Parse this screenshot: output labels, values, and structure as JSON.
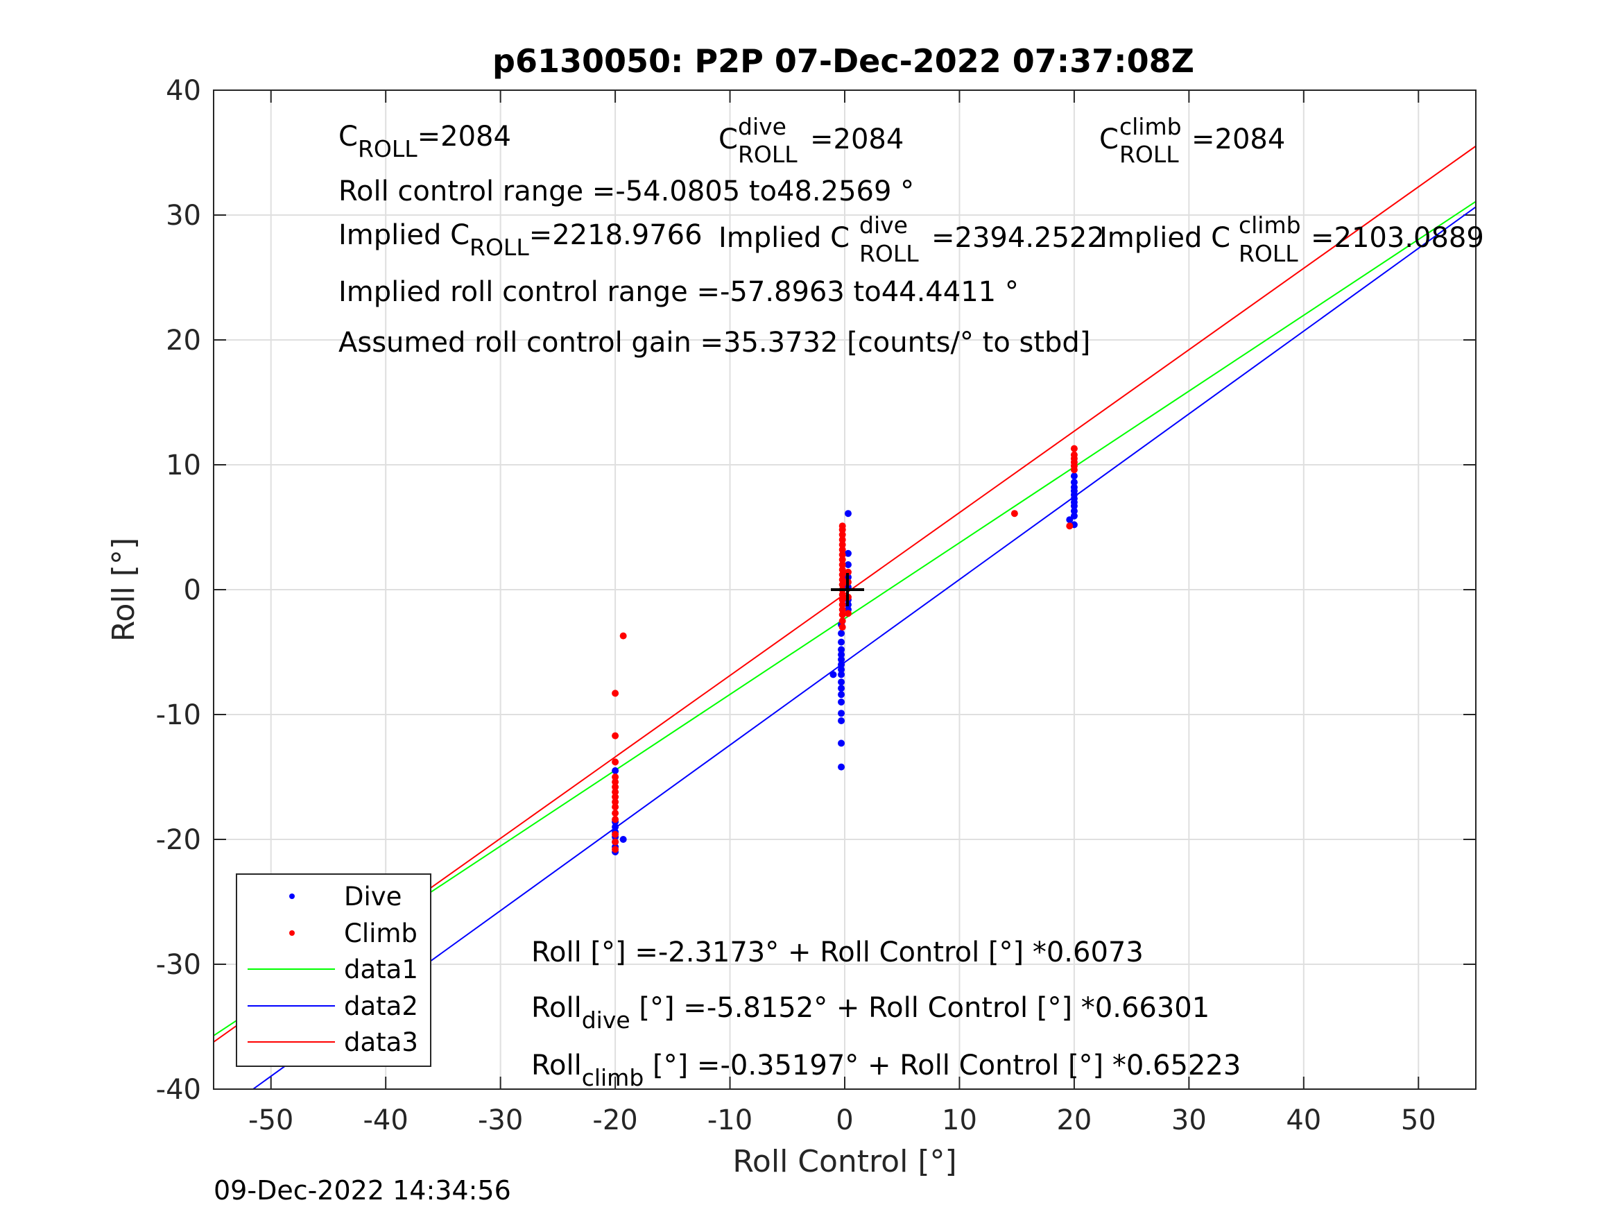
{
  "title": "p6130050: P2P 07-Dec-2022 07:37:08Z",
  "timestamp": "09-Dec-2022 14:34:56",
  "chart_data": {
    "type": "scatter",
    "xlabel": "Roll Control [°]",
    "ylabel": "Roll [°]",
    "xlim": [
      -55,
      55
    ],
    "ylim": [
      -40,
      40
    ],
    "xticks": [
      -50,
      -40,
      -30,
      -20,
      -10,
      0,
      10,
      20,
      30,
      40,
      50
    ],
    "yticks": [
      -40,
      -30,
      -20,
      -10,
      0,
      10,
      20,
      30,
      40
    ],
    "grid": true,
    "legend_position": "bottom-left",
    "annotations": {
      "c_roll": {
        "base": "C",
        "sub": "ROLL",
        "value": "=2084"
      },
      "c_roll_dive": {
        "base": "C",
        "sup": "dive",
        "sub": "ROLL",
        "value": "=2084"
      },
      "c_roll_climb": {
        "base": "C",
        "sup": "climb",
        "sub": "ROLL",
        "value": "=2084"
      },
      "range": "Roll control range =-54.0805 to48.2569 °",
      "implied_c": {
        "prefix": "Implied C",
        "sub": "ROLL",
        "value": "=2218.9766"
      },
      "implied_c_dive": {
        "prefix": "Implied C",
        "sup": "dive",
        "sub": "ROLL",
        "value": "=2394.2522"
      },
      "implied_c_climb": {
        "prefix": "Implied C",
        "sup": "climb",
        "sub": "ROLL",
        "value": "=2103.0889"
      },
      "implied_range": "Implied roll control range =-57.8963 to44.4411 °",
      "gain": "Assumed roll control gain =35.3732 [counts/° to stbd]",
      "eq_all": "Roll [°] =-2.3173° + Roll Control [°] *0.6073",
      "eq_dive": {
        "base": "Roll",
        "sub": "dive",
        "rest": " [°] =-5.8152° + Roll Control [°] *0.66301"
      },
      "eq_climb": {
        "base": "Roll",
        "sub": "climb",
        "rest": " [°] =-0.35197° + Roll Control [°] *0.65223"
      }
    },
    "series": [
      {
        "name": "Dive",
        "kind": "points",
        "color": "#0000ff",
        "points": [
          [
            -20,
            -21.0
          ],
          [
            -20,
            -20.6
          ],
          [
            -20,
            -20.2
          ],
          [
            -20,
            -19.8
          ],
          [
            -20,
            -19.4
          ],
          [
            -20,
            -19.0
          ],
          [
            -20,
            -18.6
          ],
          [
            -20,
            -14.5
          ],
          [
            -19.3,
            -20.0
          ],
          [
            -1.0,
            -6.8
          ],
          [
            -0.3,
            -14.2
          ],
          [
            -0.3,
            -12.3
          ],
          [
            -0.3,
            -10.5
          ],
          [
            -0.3,
            -9.9
          ],
          [
            -0.3,
            -9.0
          ],
          [
            -0.3,
            -8.4
          ],
          [
            -0.3,
            -7.9
          ],
          [
            -0.3,
            -7.4
          ],
          [
            -0.3,
            -6.8
          ],
          [
            -0.3,
            -6.4
          ],
          [
            -0.3,
            -6.0
          ],
          [
            -0.3,
            -5.6
          ],
          [
            -0.3,
            -5.2
          ],
          [
            -0.3,
            -4.8
          ],
          [
            -0.3,
            -4.2
          ],
          [
            -0.3,
            -3.5
          ],
          [
            -0.3,
            -2.8
          ],
          [
            0.3,
            -1.6
          ],
          [
            0.3,
            -0.8
          ],
          [
            0.3,
            0.2
          ],
          [
            0.3,
            1.0
          ],
          [
            0.3,
            2.0
          ],
          [
            0.3,
            2.9
          ],
          [
            0.3,
            6.1
          ],
          [
            0.3,
            -1.2
          ],
          [
            19.6,
            5.6
          ],
          [
            20,
            5.2
          ],
          [
            20,
            5.9
          ],
          [
            20,
            6.3
          ],
          [
            20,
            6.7
          ],
          [
            20,
            7.0
          ],
          [
            20,
            7.3
          ],
          [
            20,
            7.6
          ],
          [
            20,
            7.9
          ],
          [
            20,
            8.2
          ],
          [
            20,
            8.6
          ],
          [
            20,
            9.1
          ]
        ]
      },
      {
        "name": "Climb",
        "kind": "points",
        "color": "#ff0000",
        "points": [
          [
            -20,
            -20.8
          ],
          [
            -20,
            -20.2
          ],
          [
            -20,
            -19.6
          ],
          [
            -20,
            -18.4
          ],
          [
            -20,
            -17.9
          ],
          [
            -20,
            -17.4
          ],
          [
            -20,
            -17.0
          ],
          [
            -20,
            -16.6
          ],
          [
            -20,
            -16.2
          ],
          [
            -20,
            -15.8
          ],
          [
            -20,
            -15.4
          ],
          [
            -20,
            -15.0
          ],
          [
            -20,
            -13.8
          ],
          [
            -20,
            -11.7
          ],
          [
            -20,
            -8.3
          ],
          [
            -19.3,
            -3.7
          ],
          [
            -0.2,
            -3.0
          ],
          [
            -0.2,
            -2.5
          ],
          [
            -0.2,
            -2.0
          ],
          [
            -0.2,
            -1.6
          ],
          [
            -0.2,
            -1.2
          ],
          [
            -0.2,
            -0.8
          ],
          [
            -0.2,
            -0.4
          ],
          [
            -0.2,
            0.0
          ],
          [
            -0.2,
            0.4
          ],
          [
            -0.2,
            0.8
          ],
          [
            -0.2,
            1.2
          ],
          [
            -0.2,
            1.6
          ],
          [
            -0.2,
            2.0
          ],
          [
            -0.2,
            2.4
          ],
          [
            -0.2,
            2.8
          ],
          [
            -0.2,
            3.2
          ],
          [
            -0.2,
            3.6
          ],
          [
            -0.2,
            4.0
          ],
          [
            -0.2,
            4.4
          ],
          [
            -0.2,
            4.8
          ],
          [
            -0.2,
            5.1
          ],
          [
            0.3,
            0.6
          ],
          [
            0.3,
            1.4
          ],
          [
            0.3,
            -0.6
          ],
          [
            0.3,
            -1.9
          ],
          [
            14.8,
            6.1
          ],
          [
            19.6,
            5.1
          ],
          [
            20,
            9.6
          ],
          [
            20,
            9.9
          ],
          [
            20,
            10.2
          ],
          [
            20,
            10.5
          ],
          [
            20,
            10.8
          ],
          [
            20,
            11.3
          ]
        ]
      },
      {
        "name": "data1",
        "kind": "line",
        "color": "#00ff00",
        "intercept": -2.3173,
        "slope": 0.6073
      },
      {
        "name": "data2",
        "kind": "line",
        "color": "#0000ff",
        "intercept": -5.8152,
        "slope": 0.66301
      },
      {
        "name": "data3",
        "kind": "line",
        "color": "#ff0000",
        "intercept": -0.35197,
        "slope": 0.65223
      }
    ]
  }
}
